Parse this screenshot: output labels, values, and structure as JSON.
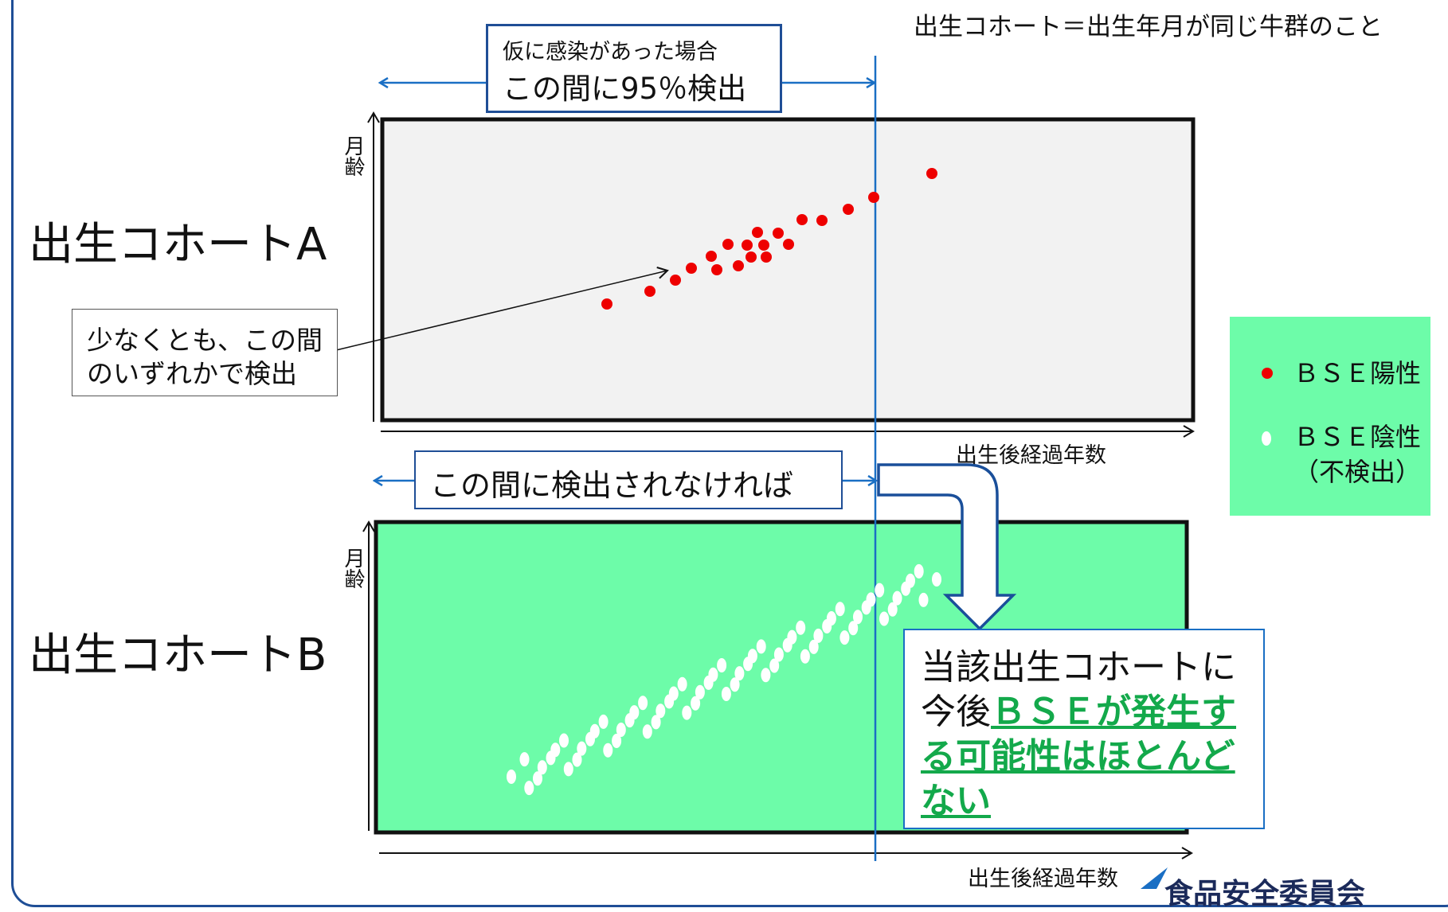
{
  "definition": "出生コホート＝出生年月が同じ牛群のこと",
  "top_note": {
    "line1": "仮に感染があった場合",
    "line2": "この間に95％検出"
  },
  "cohort_a_label": "出生コホートA",
  "cohort_b_label": "出生コホートB",
  "y_axis_label": "月齢",
  "x_axis_label": "出生後経過年数",
  "callout": {
    "line1": "少なくとも、この間",
    "line2": "のいずれかで検出"
  },
  "middle_note": "この間に検出されなければ",
  "conclusion": {
    "prefix": "当該出生コホートに",
    "line2_plain": "今後",
    "line2_emph": "ＢＳＥが発生す",
    "line3_emph": "る可能性はほとんど",
    "line4_emph": "ない"
  },
  "legend": {
    "positive": "ＢＳＥ陽性",
    "negative_line1": "ＢＳＥ陰性",
    "negative_line2": "（不検出）"
  },
  "footer_partial": "食品安全委員会",
  "colors": {
    "frame": "#1f4e96",
    "panel_a_fill": "#f2f2f2",
    "panel_b_fill": "#6dfca9",
    "legend_fill": "#6dfca9",
    "positive_dot": "#ee0000",
    "negative_dot": "#ffffff",
    "arrow_blue": "#1a6fc4",
    "emphasis_green": "#13a94b"
  }
}
